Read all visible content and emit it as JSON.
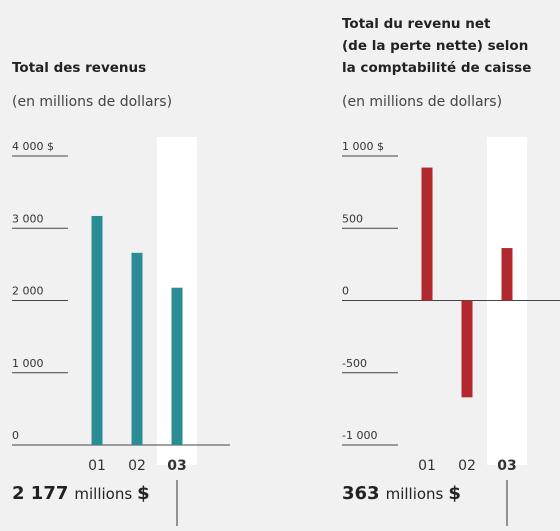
{
  "chart_data": [
    {
      "type": "bar",
      "title": [
        "Total des revenus"
      ],
      "subtitle": "(en millions de dollars)",
      "categories": [
        "01",
        "02",
        "03"
      ],
      "values": [
        3170,
        2660,
        2177
      ],
      "color": "#2a8d95",
      "highlight_index": 2,
      "ylim": [
        0,
        4000
      ],
      "yticks": [
        0,
        {
          "value": 1000,
          "label": "1 000"
        },
        {
          "value": 2000,
          "label": "2 000"
        },
        {
          "value": 3000,
          "label": "3 000"
        },
        {
          "value": 4000,
          "label": "4 000 $"
        }
      ],
      "total": {
        "value": 2177,
        "label": "2 177"
      },
      "total_unit": "millions",
      "total_currency": "$"
    },
    {
      "type": "bar",
      "title": [
        "Total du revenu net",
        "(de la perte nette) selon",
        "la comptabilité de caisse"
      ],
      "subtitle": "(en millions de dollars)",
      "categories": [
        "01",
        "02",
        "03"
      ],
      "values": [
        920,
        -670,
        363
      ],
      "color": "#b3282f",
      "highlight_index": 2,
      "ylim": [
        -1000,
        1000
      ],
      "yticks": [
        {
          "value": -1000,
          "label": "-1 000"
        },
        -500,
        0,
        500,
        {
          "value": 1000,
          "label": "1 000 $"
        }
      ],
      "total": {
        "value": 363,
        "label": "363"
      },
      "total_unit": "millions",
      "total_currency": "$"
    }
  ]
}
